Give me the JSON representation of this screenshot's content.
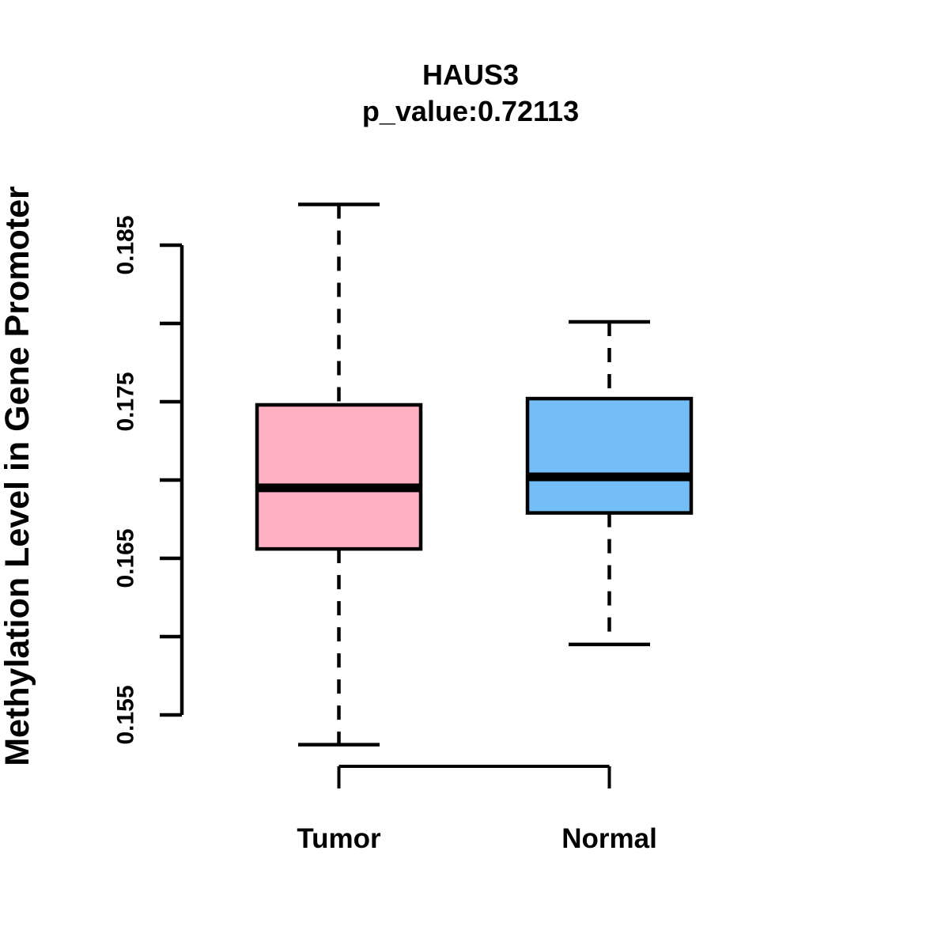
{
  "chart_data": {
    "type": "boxplot",
    "title": "HAUS3",
    "subtitle": "p_value:0.72113",
    "p_value": "0.72113",
    "ylabel": "Methylation Level in Gene Promoter",
    "xlabel": "",
    "categories": [
      "Tumor",
      "Normal"
    ],
    "series": [
      {
        "name": "Tumor",
        "color": "#FFB0C2",
        "whisker_low": 0.1531,
        "q1": 0.1656,
        "median": 0.1695,
        "q3": 0.1748,
        "whisker_high": 0.1876
      },
      {
        "name": "Normal",
        "color": "#74BEF7",
        "whisker_low": 0.1595,
        "q1": 0.1679,
        "median": 0.1702,
        "q3": 0.1752,
        "whisker_high": 0.1801
      }
    ],
    "y_axis": {
      "range": [
        0.155,
        0.185
      ],
      "tick_step": 0.005,
      "ticks": [
        0.155,
        0.16,
        0.165,
        0.17,
        0.175,
        0.18,
        0.185
      ],
      "labeled_ticks": [
        "0.155",
        "0.165",
        "0.175",
        "0.185"
      ]
    },
    "legend": "none",
    "grid": false,
    "colors": {
      "line": "#000000",
      "text": "#000000",
      "background": "#ffffff"
    }
  }
}
